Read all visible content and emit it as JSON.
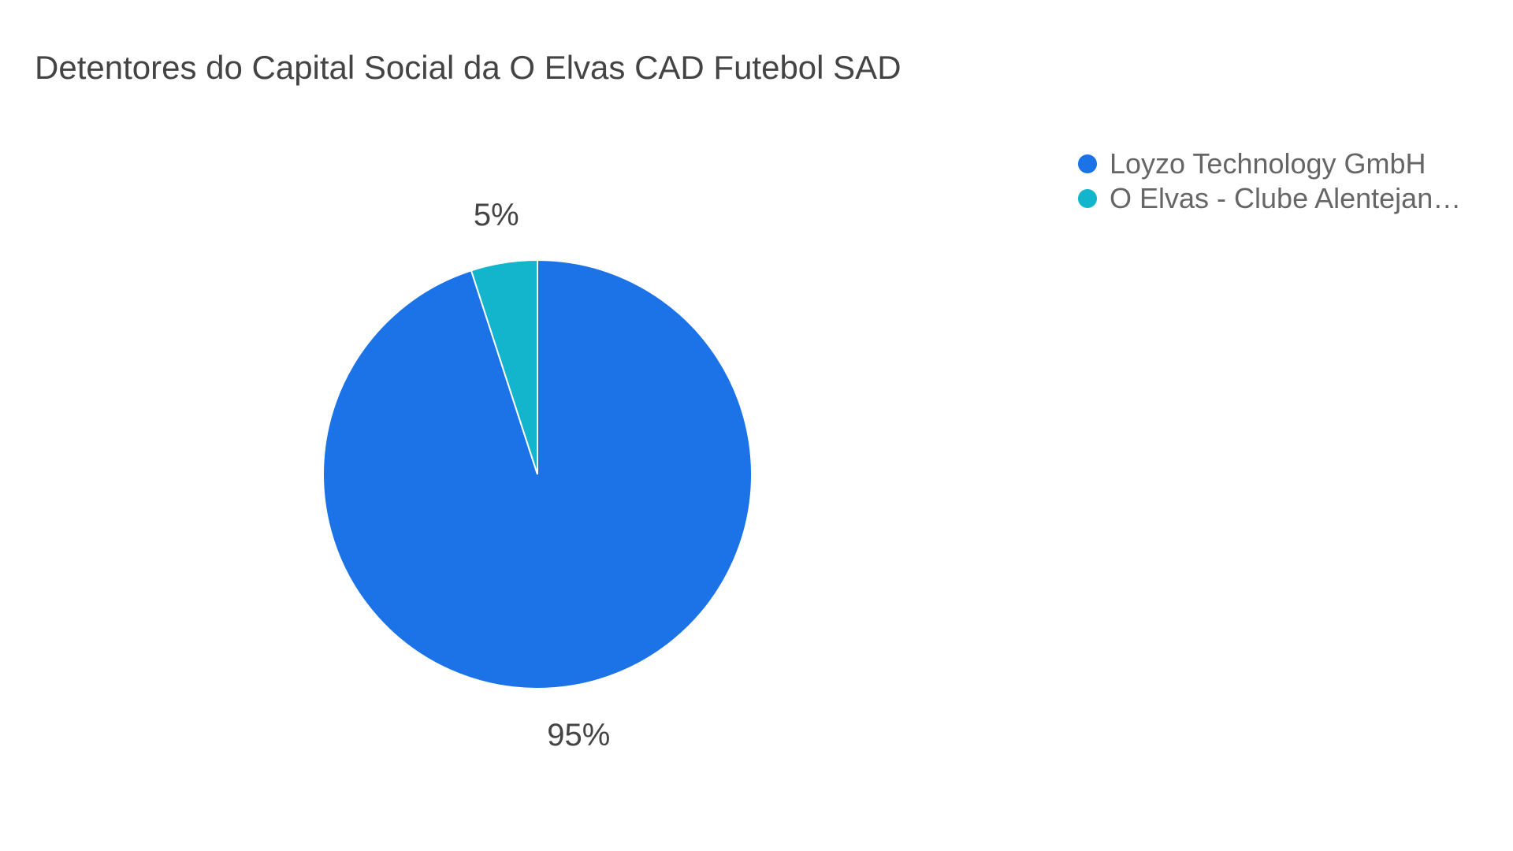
{
  "chart_data": {
    "type": "pie",
    "title": "Detentores do Capital Social da O Elvas CAD Futebol SAD",
    "slices": [
      {
        "name": "Loyzo Technology GmbH",
        "value": 95,
        "label": "95%",
        "color": "#1c73e8"
      },
      {
        "name": "O Elvas - Clube Alentejano de Desportos",
        "display_name": "O Elvas - Clube Alentejan…",
        "value": 5,
        "label": "5%",
        "color": "#12b5cb"
      }
    ],
    "legend": {
      "position": "right"
    }
  }
}
